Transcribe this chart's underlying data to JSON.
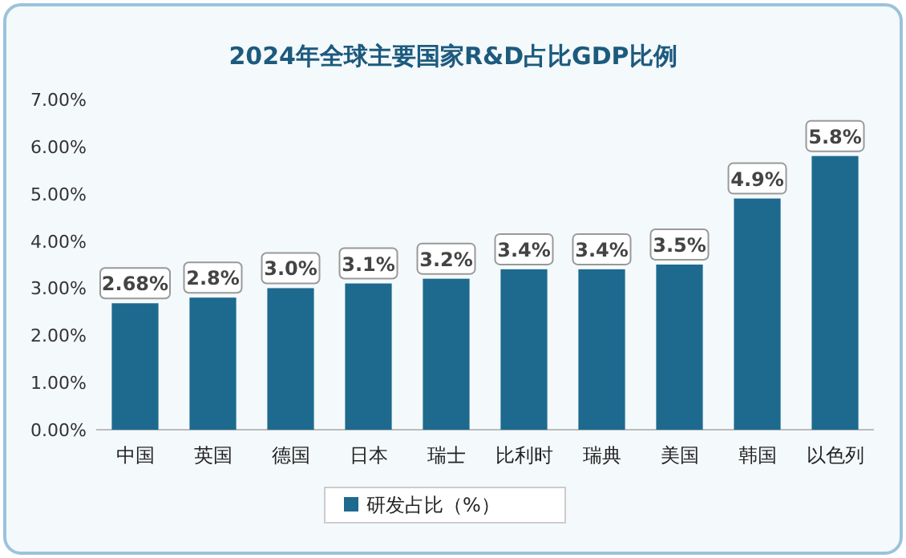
{
  "chart_data": {
    "type": "bar",
    "title": "2024年全球主要国家R&D占比GDP比例",
    "categories": [
      "中国",
      "英国",
      "德国",
      "日本",
      "瑞士",
      "比利时",
      "瑞典",
      "美国",
      "韩国",
      "以色列"
    ],
    "series": [
      {
        "name": "研发占比（%）",
        "color": "#1d6a8e",
        "values": [
          2.68,
          2.8,
          3.0,
          3.1,
          3.2,
          3.4,
          3.4,
          3.5,
          4.9,
          5.8
        ],
        "value_labels": [
          "2.68%",
          "2.8%",
          "3.0%",
          "3.1%",
          "3.2%",
          "3.4%",
          "3.4%",
          "3.5%",
          "4.9%",
          "5.8%"
        ]
      }
    ],
    "ylim": [
      0,
      7
    ],
    "yticks": [
      {
        "value": 0,
        "label": "0.00%"
      },
      {
        "value": 1,
        "label": "1.00%"
      },
      {
        "value": 2,
        "label": "2.00%"
      },
      {
        "value": 3,
        "label": "3.00%"
      },
      {
        "value": 4,
        "label": "4.00%"
      },
      {
        "value": 5,
        "label": "5.00%"
      },
      {
        "value": 6,
        "label": "6.00%"
      },
      {
        "value": 7,
        "label": "7.00%"
      }
    ],
    "legend": "bottom"
  }
}
